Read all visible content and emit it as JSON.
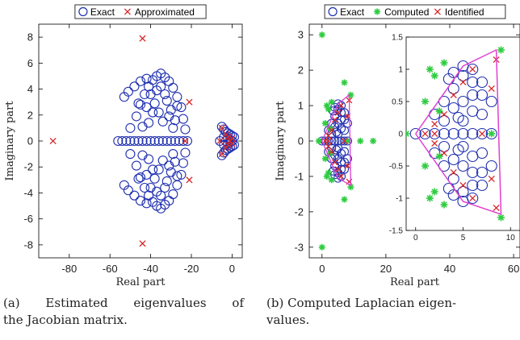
{
  "colors": {
    "exact": "#1f2fb0",
    "approx": "#d62728",
    "computed": "#2ecc40",
    "identified": "#d62728",
    "boundary": "#e040d0",
    "axis": "#000000",
    "tick_text": "#222222"
  },
  "captions": {
    "a": {
      "line1": "(a) Estimated eigenvalues of",
      "line2": "the Jacobian matrix."
    },
    "b": {
      "line1": "(b) Computed Laplacian eigen-",
      "line2": "values."
    }
  },
  "chart_data": [
    {
      "type": "scatter",
      "xlabel": "Real part",
      "ylabel": "Imaginary part",
      "xlim": [
        -95,
        5
      ],
      "ylim": [
        -9,
        9
      ],
      "xticks": [
        -80,
        -60,
        -40,
        -20,
        0
      ],
      "yticks": [
        -8,
        -6,
        -4,
        -2,
        0,
        2,
        4,
        6,
        8
      ],
      "legend": {
        "position": "top",
        "entries": [
          "Exact",
          "Approximated"
        ]
      },
      "series": [
        {
          "name": "Exact",
          "marker": "open-circle",
          "points": [
            [
              -56,
              0
            ],
            [
              -54,
              0
            ],
            [
              -52,
              0
            ],
            [
              -50,
              0
            ],
            [
              -48,
              0
            ],
            [
              -46,
              0
            ],
            [
              -44,
              0
            ],
            [
              -42,
              0
            ],
            [
              -40,
              0
            ],
            [
              -38,
              0
            ],
            [
              -36,
              0
            ],
            [
              -34,
              0
            ],
            [
              -32,
              0
            ],
            [
              -30,
              0
            ],
            [
              -28,
              0
            ],
            [
              -26,
              0
            ],
            [
              -24,
              0
            ],
            [
              -22,
              0
            ],
            [
              -50,
              1.0
            ],
            [
              -47,
              1.9
            ],
            [
              -45,
              2.8
            ],
            [
              -43,
              3.6
            ],
            [
              -41,
              4.2
            ],
            [
              -39,
              4.7
            ],
            [
              -37,
              5.0
            ],
            [
              -35,
              5.2
            ],
            [
              -33,
              4.9
            ],
            [
              -31,
              4.6
            ],
            [
              -29,
              4.1
            ],
            [
              -27,
              3.4
            ],
            [
              -25,
              2.6
            ],
            [
              -24,
              1.7
            ],
            [
              -23,
              0.9
            ],
            [
              -50,
              -1.0
            ],
            [
              -47,
              -1.9
            ],
            [
              -45,
              -2.8
            ],
            [
              -43,
              -3.6
            ],
            [
              -41,
              -4.2
            ],
            [
              -39,
              -4.7
            ],
            [
              -37,
              -5.0
            ],
            [
              -35,
              -5.2
            ],
            [
              -33,
              -4.9
            ],
            [
              -31,
              -4.6
            ],
            [
              -29,
              -4.1
            ],
            [
              -27,
              -3.4
            ],
            [
              -25,
              -2.6
            ],
            [
              -24,
              -1.7
            ],
            [
              -23,
              -0.9
            ],
            [
              -53,
              3.4
            ],
            [
              -51,
              3.8
            ],
            [
              -48,
              4.2
            ],
            [
              -45,
              4.6
            ],
            [
              -42,
              4.8
            ],
            [
              -40,
              3.6
            ],
            [
              -38,
              2.9
            ],
            [
              -36,
              2.2
            ],
            [
              -34,
              1.5
            ],
            [
              -32,
              3.1
            ],
            [
              -30,
              2.4
            ],
            [
              -28,
              1.6
            ],
            [
              -41,
              1.4
            ],
            [
              -39,
              2.2
            ],
            [
              -37,
              3.9
            ],
            [
              -35,
              4.2
            ],
            [
              -33,
              3.6
            ],
            [
              -31,
              1.9
            ],
            [
              -29,
              1.0
            ],
            [
              -27,
              2.7
            ],
            [
              -44,
              1.1
            ],
            [
              -46,
              2.9
            ],
            [
              -42,
              2.6
            ],
            [
              -53,
              -3.4
            ],
            [
              -51,
              -3.8
            ],
            [
              -48,
              -4.2
            ],
            [
              -45,
              -4.6
            ],
            [
              -42,
              -4.8
            ],
            [
              -40,
              -3.6
            ],
            [
              -38,
              -2.9
            ],
            [
              -36,
              -2.2
            ],
            [
              -34,
              -1.5
            ],
            [
              -32,
              -3.1
            ],
            [
              -30,
              -2.4
            ],
            [
              -28,
              -1.6
            ],
            [
              -41,
              -1.4
            ],
            [
              -39,
              -2.2
            ],
            [
              -37,
              -3.9
            ],
            [
              -35,
              -4.2
            ],
            [
              -33,
              -3.6
            ],
            [
              -31,
              -1.9
            ],
            [
              -29,
              -1.0
            ],
            [
              -27,
              -2.7
            ],
            [
              -44,
              -1.1
            ],
            [
              -46,
              -2.9
            ],
            [
              -42,
              -2.6
            ],
            [
              -5,
              1.1
            ],
            [
              -4,
              0.9
            ],
            [
              -3,
              0.7
            ],
            [
              -2,
              0.6
            ],
            [
              -1,
              0.5
            ],
            [
              0,
              0.4
            ],
            [
              -5,
              -1.1
            ],
            [
              -4,
              -0.9
            ],
            [
              -3,
              -0.7
            ],
            [
              -2,
              -0.6
            ],
            [
              -1,
              -0.5
            ],
            [
              0,
              -0.4
            ],
            [
              -4,
              0.3
            ],
            [
              -2,
              0.2
            ],
            [
              -1,
              0.1
            ],
            [
              -4,
              -0.3
            ],
            [
              -2,
              -0.2
            ],
            [
              -1,
              -0.1
            ],
            [
              -6,
              0
            ],
            [
              -3,
              0
            ],
            [
              0,
              0
            ],
            [
              1,
              0.3
            ],
            [
              1,
              -0.3
            ]
          ]
        },
        {
          "name": "Approximated",
          "marker": "x",
          "points": [
            [
              -88,
              0
            ],
            [
              -44,
              7.9
            ],
            [
              -44,
              -7.9
            ],
            [
              -21,
              3.0
            ],
            [
              -21,
              -3.0
            ],
            [
              -23,
              0
            ],
            [
              -6,
              0
            ],
            [
              -5,
              1.0
            ],
            [
              -5,
              -1.0
            ],
            [
              -3,
              0.5
            ],
            [
              -3,
              -0.5
            ],
            [
              -2,
              0.3
            ],
            [
              -2,
              -0.3
            ],
            [
              -1,
              0
            ],
            [
              0,
              0.2
            ],
            [
              0,
              -0.2
            ]
          ]
        }
      ]
    },
    {
      "type": "scatter",
      "xlabel": "Real part",
      "ylabel": "Imaginary part",
      "xlim": [
        -4,
        62
      ],
      "ylim": [
        -3.3,
        3.3
      ],
      "xticks": [
        0,
        20,
        40,
        60
      ],
      "xtick_labels": [
        "0",
        "20",
        "40",
        "60"
      ],
      "yticks": [
        -3,
        -2,
        -1,
        0,
        1,
        2,
        3
      ],
      "legend": {
        "position": "top",
        "entries": [
          "Exact",
          "Computed",
          "Identified"
        ]
      },
      "series": [
        {
          "name": "Exact",
          "marker": "open-circle",
          "points": [
            [
              0,
              0
            ],
            [
              1,
              0
            ],
            [
              2,
              0
            ],
            [
              3,
              0
            ],
            [
              4,
              0
            ],
            [
              5,
              0
            ],
            [
              6,
              0
            ],
            [
              7,
              0
            ],
            [
              8,
              0
            ],
            [
              2,
              0.3
            ],
            [
              3,
              0.5
            ],
            [
              4,
              0.7
            ],
            [
              5,
              0.9
            ],
            [
              6,
              1.0
            ],
            [
              7,
              0.8
            ],
            [
              8,
              0.5
            ],
            [
              2,
              -0.3
            ],
            [
              3,
              -0.5
            ],
            [
              4,
              -0.7
            ],
            [
              5,
              -0.9
            ],
            [
              6,
              -1.0
            ],
            [
              7,
              -0.8
            ],
            [
              8,
              -0.5
            ],
            [
              3,
              0.2
            ],
            [
              4,
              0.4
            ],
            [
              5,
              0.5
            ],
            [
              6,
              0.6
            ],
            [
              7,
              0.3
            ],
            [
              3,
              -0.2
            ],
            [
              4,
              -0.4
            ],
            [
              5,
              -0.5
            ],
            [
              6,
              -0.6
            ],
            [
              7,
              -0.3
            ],
            [
              4,
              0.95
            ],
            [
              5,
              1.05
            ],
            [
              6,
              0.35
            ],
            [
              4,
              -0.95
            ],
            [
              5,
              -1.05
            ],
            [
              6,
              -0.35
            ],
            [
              5,
              0.2
            ],
            [
              5,
              -0.2
            ],
            [
              6,
              0.8
            ],
            [
              6,
              -0.8
            ],
            [
              7,
              0.6
            ],
            [
              7,
              -0.6
            ],
            [
              3.5,
              0.85
            ],
            [
              3.5,
              -0.85
            ],
            [
              4.5,
              0.25
            ],
            [
              4.5,
              -0.25
            ]
          ]
        },
        {
          "name": "Computed",
          "marker": "asterisk",
          "points": [
            [
              0,
              3.0
            ],
            [
              0,
              -3.0
            ],
            [
              7,
              1.65
            ],
            [
              7,
              -1.65
            ],
            [
              9,
              1.3
            ],
            [
              9,
              -1.3
            ],
            [
              1,
              0.5
            ],
            [
              1,
              -0.5
            ],
            [
              2,
              0.9
            ],
            [
              2,
              -0.9
            ],
            [
              16,
              0
            ],
            [
              12,
              0
            ],
            [
              -1,
              0
            ],
            [
              1.5,
              1.0
            ],
            [
              1.5,
              -1.0
            ],
            [
              3,
              1.1
            ],
            [
              3,
              -1.1
            ],
            [
              8,
              0
            ],
            [
              2.5,
              0.35
            ],
            [
              2.5,
              -0.35
            ]
          ]
        },
        {
          "name": "Identified",
          "marker": "x",
          "points": [
            [
              1,
              0
            ],
            [
              2,
              0
            ],
            [
              3,
              0.3
            ],
            [
              3,
              -0.3
            ],
            [
              4,
              0.6
            ],
            [
              4,
              -0.6
            ],
            [
              5,
              0.8
            ],
            [
              5,
              -0.8
            ],
            [
              6,
              1.0
            ],
            [
              6,
              -1.0
            ],
            [
              8,
              0.7
            ],
            [
              8,
              -0.7
            ],
            [
              8.5,
              1.15
            ],
            [
              8.5,
              -1.15
            ],
            [
              2,
              0.15
            ],
            [
              2,
              -0.15
            ],
            [
              7,
              0
            ]
          ]
        }
      ],
      "inset": {
        "xlim": [
          -1,
          11
        ],
        "ylim": [
          -1.5,
          1.5
        ],
        "xticks": [
          0,
          5,
          10
        ],
        "yticks": [
          -1.5,
          -1,
          -0.5,
          0,
          0.5,
          1,
          1.5
        ],
        "boundary": [
          [
            0,
            0
          ],
          [
            5,
            1.05
          ],
          [
            8.5,
            1.3
          ],
          [
            9,
            -1.25
          ],
          [
            5,
            -1.05
          ],
          [
            0,
            0
          ]
        ]
      }
    }
  ]
}
